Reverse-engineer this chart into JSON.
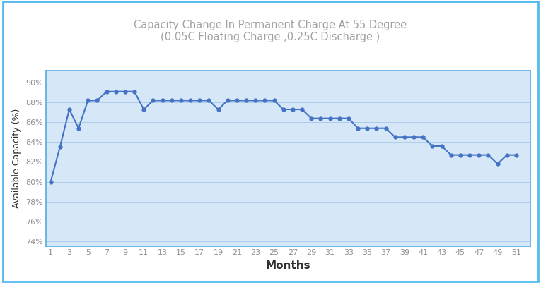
{
  "title_line1": "Capacity Change In Permanent Charge At 55 Degree",
  "title_line2": "(0.05C Floating Charge ,0.25C Discharge )",
  "xlabel": "Months",
  "ylabel": "Available Capacity (%)",
  "x_ticks": [
    1,
    3,
    5,
    7,
    9,
    11,
    13,
    15,
    17,
    19,
    21,
    23,
    25,
    27,
    29,
    31,
    33,
    35,
    37,
    39,
    41,
    43,
    45,
    47,
    49,
    51
  ],
  "ylim": [
    73.5,
    91.2
  ],
  "xlim": [
    0.5,
    52.5
  ],
  "y_ticks": [
    74,
    76,
    78,
    80,
    82,
    84,
    86,
    88,
    90
  ],
  "months": [
    1,
    2,
    3,
    4,
    5,
    6,
    7,
    8,
    9,
    10,
    11,
    12,
    13,
    14,
    15,
    16,
    17,
    18,
    19,
    20,
    21,
    22,
    23,
    24,
    25,
    26,
    27,
    28,
    29,
    30,
    31,
    32,
    33,
    34,
    35,
    36,
    37,
    38,
    39,
    40,
    41,
    42,
    43,
    44,
    45,
    46,
    47,
    48,
    49,
    50,
    51
  ],
  "values": [
    80.0,
    83.5,
    87.3,
    85.4,
    88.2,
    88.2,
    89.1,
    89.1,
    89.1,
    89.1,
    87.3,
    88.2,
    88.2,
    88.2,
    88.2,
    88.2,
    88.2,
    88.2,
    87.3,
    88.2,
    88.2,
    88.2,
    88.2,
    88.2,
    88.2,
    87.3,
    87.3,
    87.3,
    86.4,
    86.4,
    86.4,
    86.4,
    86.4,
    85.4,
    85.4,
    85.4,
    85.4,
    84.5,
    84.5,
    84.5,
    84.5,
    83.6,
    83.6,
    82.7,
    82.7,
    82.7,
    82.7,
    82.7,
    81.8,
    82.7,
    82.7
  ],
  "line_color": "#4472C4",
  "marker": "o",
  "marker_size": 3.5,
  "line_width": 1.5,
  "fig_bg_color": "#FFFFFF",
  "plot_bg_color": "#D6E8F7",
  "grid_color": "#A8C8E8",
  "border_color": "#55AADD",
  "outer_border_color": "#55BBEE",
  "title_color": "#A0A0A0",
  "axis_label_color": "#303030",
  "tick_label_color": "#909090",
  "xlabel_fontsize": 11,
  "ylabel_fontsize": 9,
  "title_fontsize": 10.5,
  "tick_fontsize": 8
}
